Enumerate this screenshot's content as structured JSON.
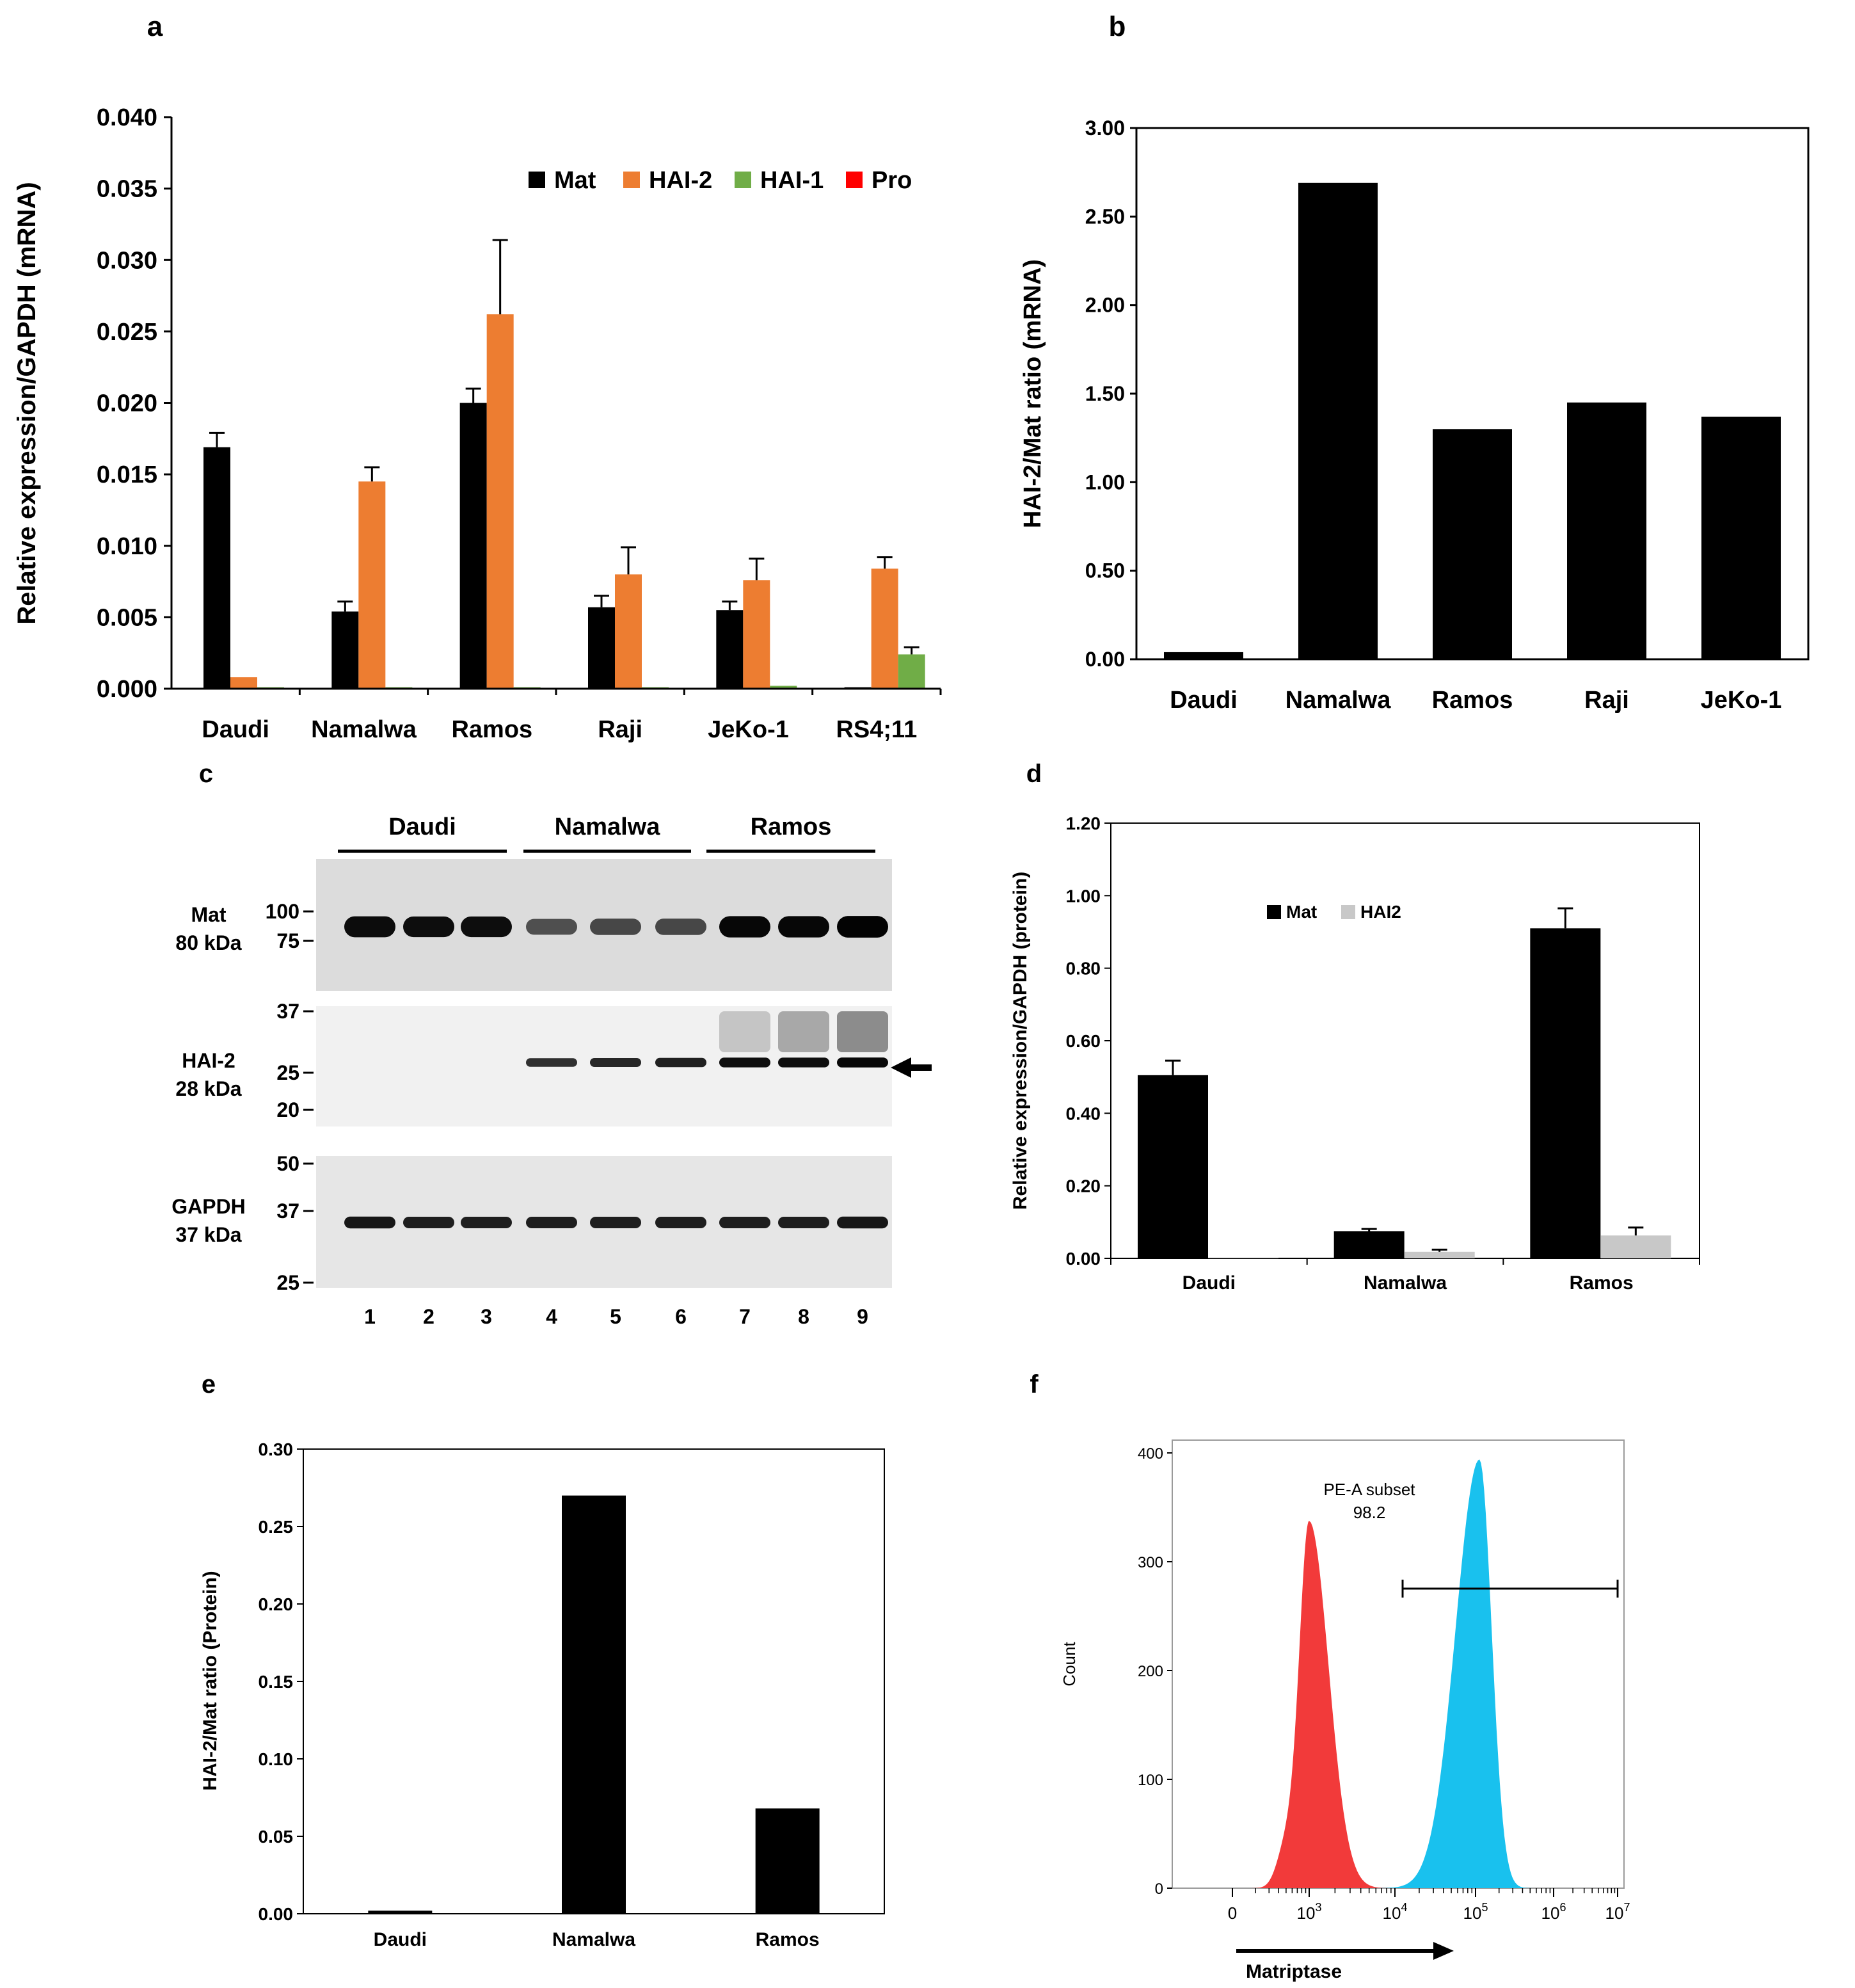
{
  "panel_letters": [
    "a",
    "b",
    "c",
    "d",
    "e",
    "f"
  ],
  "colors": {
    "mat": "#000000",
    "hai2": "#ed7d31",
    "hai1": "#70ad47",
    "pro": "#ff0000",
    "hai2_protein": "#c8c8c8",
    "flow_control": "#f23a3a",
    "flow_matriptase": "#19c1ee"
  },
  "chart_data": [
    {
      "panel": "a",
      "type": "bar",
      "ylabel": "Relative expression/GAPDH (mRNA)",
      "ylim": [
        0,
        0.04
      ],
      "yticks": [
        "0.000",
        "0.005",
        "0.010",
        "0.015",
        "0.020",
        "0.025",
        "0.030",
        "0.035",
        "0.040"
      ],
      "categories": [
        "Daudi",
        "Namalwa",
        "Ramos",
        "Raji",
        "JeKo-1",
        "RS4;11"
      ],
      "legend_position": "top-right",
      "series": [
        {
          "name": "Mat",
          "color": "#000000",
          "values": [
            0.0169,
            0.0054,
            0.02,
            0.0057,
            0.0055,
            0.0001
          ],
          "errors": [
            0.001,
            0.0007,
            0.001,
            0.0008,
            0.0006,
            0.0
          ]
        },
        {
          "name": "HAI-2",
          "color": "#ed7d31",
          "values": [
            0.0008,
            0.0145,
            0.0262,
            0.008,
            0.0076,
            0.0084
          ],
          "errors": [
            0.0,
            0.001,
            0.0052,
            0.0019,
            0.0015,
            0.0008
          ]
        },
        {
          "name": "HAI-1",
          "color": "#70ad47",
          "values": [
            0.0001,
            0.0001,
            0.0001,
            0.0001,
            0.0002,
            0.0024
          ],
          "errors": [
            0.0,
            0.0,
            0.0,
            0.0,
            0.0,
            0.0005
          ]
        },
        {
          "name": "Pro",
          "color": "#ff0000",
          "values": [
            0,
            0,
            0,
            0,
            0,
            0
          ],
          "errors": [
            0,
            0,
            0,
            0,
            0,
            0
          ]
        }
      ]
    },
    {
      "panel": "b",
      "type": "bar",
      "ylabel": "HAI-2/Mat ratio (mRNA)",
      "ylim": [
        0,
        3
      ],
      "yticks": [
        "0.00",
        "0.50",
        "1.00",
        "1.50",
        "2.00",
        "2.50",
        "3.00"
      ],
      "categories": [
        "Daudi",
        "Namalwa",
        "Ramos",
        "Raji",
        "JeKo-1"
      ],
      "values": [
        0.04,
        2.69,
        1.3,
        1.45,
        1.37
      ]
    },
    {
      "panel": "d",
      "type": "bar",
      "ylabel": "Relative expression/GAPDH (protein)",
      "ylim": [
        0,
        1.2
      ],
      "yticks": [
        "0.00",
        "0.20",
        "0.40",
        "0.60",
        "0.80",
        "1.00",
        "1.20"
      ],
      "categories": [
        "Daudi",
        "Namalwa",
        "Ramos"
      ],
      "legend_position": "top-center",
      "series": [
        {
          "name": "Mat",
          "color": "#000000",
          "values": [
            0.505,
            0.075,
            0.91
          ],
          "errors": [
            0.04,
            0.006,
            0.055
          ]
        },
        {
          "name": "HAI2",
          "color": "#c8c8c8",
          "values": [
            0.001,
            0.018,
            0.063
          ],
          "errors": [
            0.0,
            0.006,
            0.022
          ]
        }
      ]
    },
    {
      "panel": "e",
      "type": "bar",
      "ylabel": "HAI-2/Mat ratio (Protein)",
      "ylim": [
        0,
        0.3
      ],
      "yticks": [
        "0.00",
        "0.05",
        "0.10",
        "0.15",
        "0.20",
        "0.25",
        "0.30"
      ],
      "categories": [
        "Daudi",
        "Namalwa",
        "Ramos"
      ],
      "values": [
        0.002,
        0.27,
        0.068
      ]
    },
    {
      "panel": "f",
      "type": "area",
      "xlabel": "Matriptase",
      "ylabel": "Count",
      "ylim": [
        0,
        400
      ],
      "yticks": [
        "0",
        "100",
        "200",
        "300",
        "400"
      ],
      "xticks": [
        {
          "base": "0",
          "exp": ""
        },
        {
          "base": "10",
          "exp": "3"
        },
        {
          "base": "10",
          "exp": "4"
        },
        {
          "base": "10",
          "exp": "5"
        },
        {
          "base": "10",
          "exp": "6"
        },
        {
          "base": "10",
          "exp": "7"
        }
      ],
      "gate": {
        "name": "PE-A subset",
        "value": "98.2"
      }
    }
  ],
  "western_blot": {
    "panel": "c",
    "groups": [
      "Daudi",
      "Namalwa",
      "Ramos"
    ],
    "lanes": [
      "1",
      "2",
      "3",
      "4",
      "5",
      "6",
      "7",
      "8",
      "9"
    ],
    "rows": [
      {
        "name": "Mat",
        "size": "80 kDa",
        "markers": [
          "100",
          "75"
        ],
        "band_strength": [
          0.92,
          0.9,
          0.9,
          0.45,
          0.5,
          0.5,
          0.95,
          0.95,
          0.98
        ]
      },
      {
        "name": "HAI-2",
        "size": "28 kDa",
        "markers": [
          "37",
          "25",
          "20"
        ],
        "band_strength": [
          0.0,
          0.0,
          0.0,
          0.7,
          0.75,
          0.8,
          0.9,
          0.9,
          0.95
        ]
      },
      {
        "name": "GAPDH",
        "size": "37 kDa",
        "markers": [
          "50",
          "37",
          "25"
        ],
        "band_strength": [
          0.85,
          0.8,
          0.8,
          0.8,
          0.8,
          0.8,
          0.8,
          0.8,
          0.85
        ]
      }
    ]
  }
}
